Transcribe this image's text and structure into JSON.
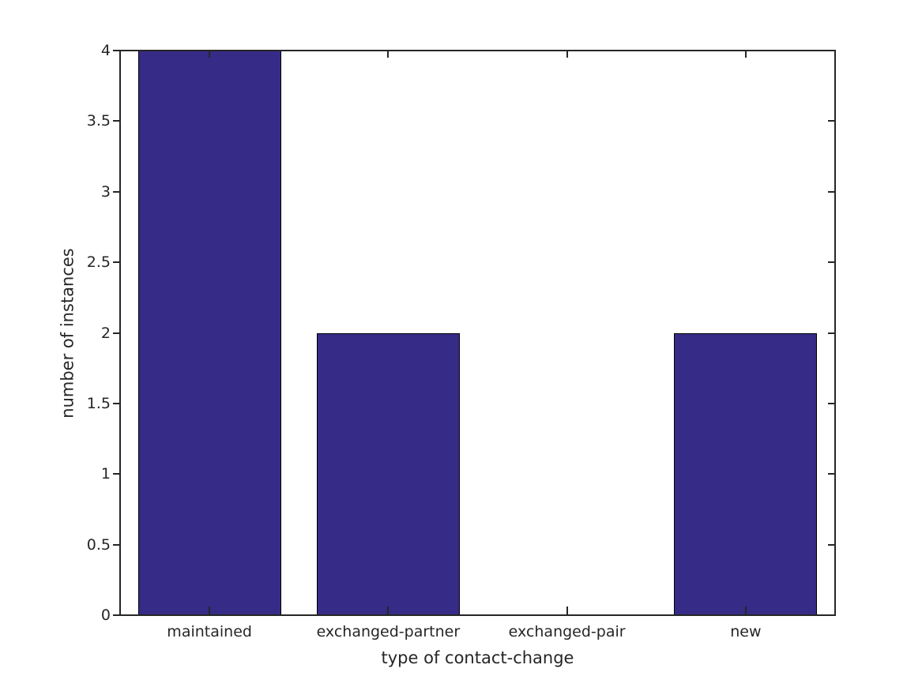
{
  "figure": {
    "background": "#ffffff",
    "axis_color": "#262626",
    "text_color": "#262626"
  },
  "chart_data": {
    "type": "bar",
    "title": "",
    "xlabel": "type of contact-change",
    "ylabel": "number of instances",
    "categories": [
      "maintained",
      "exchanged-partner",
      "exchanged-pair",
      "new"
    ],
    "values": [
      4,
      2,
      0,
      2
    ],
    "ylim": [
      0,
      4
    ],
    "yticks": [
      0,
      0.5,
      1,
      1.5,
      2,
      2.5,
      3,
      3.5,
      4
    ],
    "ytick_labels": [
      "0",
      "0.5",
      "1",
      "1.5",
      "2",
      "2.5",
      "3",
      "3.5",
      "4"
    ],
    "bar_width_fraction": 0.8,
    "bar_color": "#362B87",
    "bar_edge_color": "#000000",
    "grid": false,
    "legend": null,
    "tick_style": {
      "left": "out",
      "right": "in",
      "bottom": "in",
      "top": "in"
    }
  }
}
